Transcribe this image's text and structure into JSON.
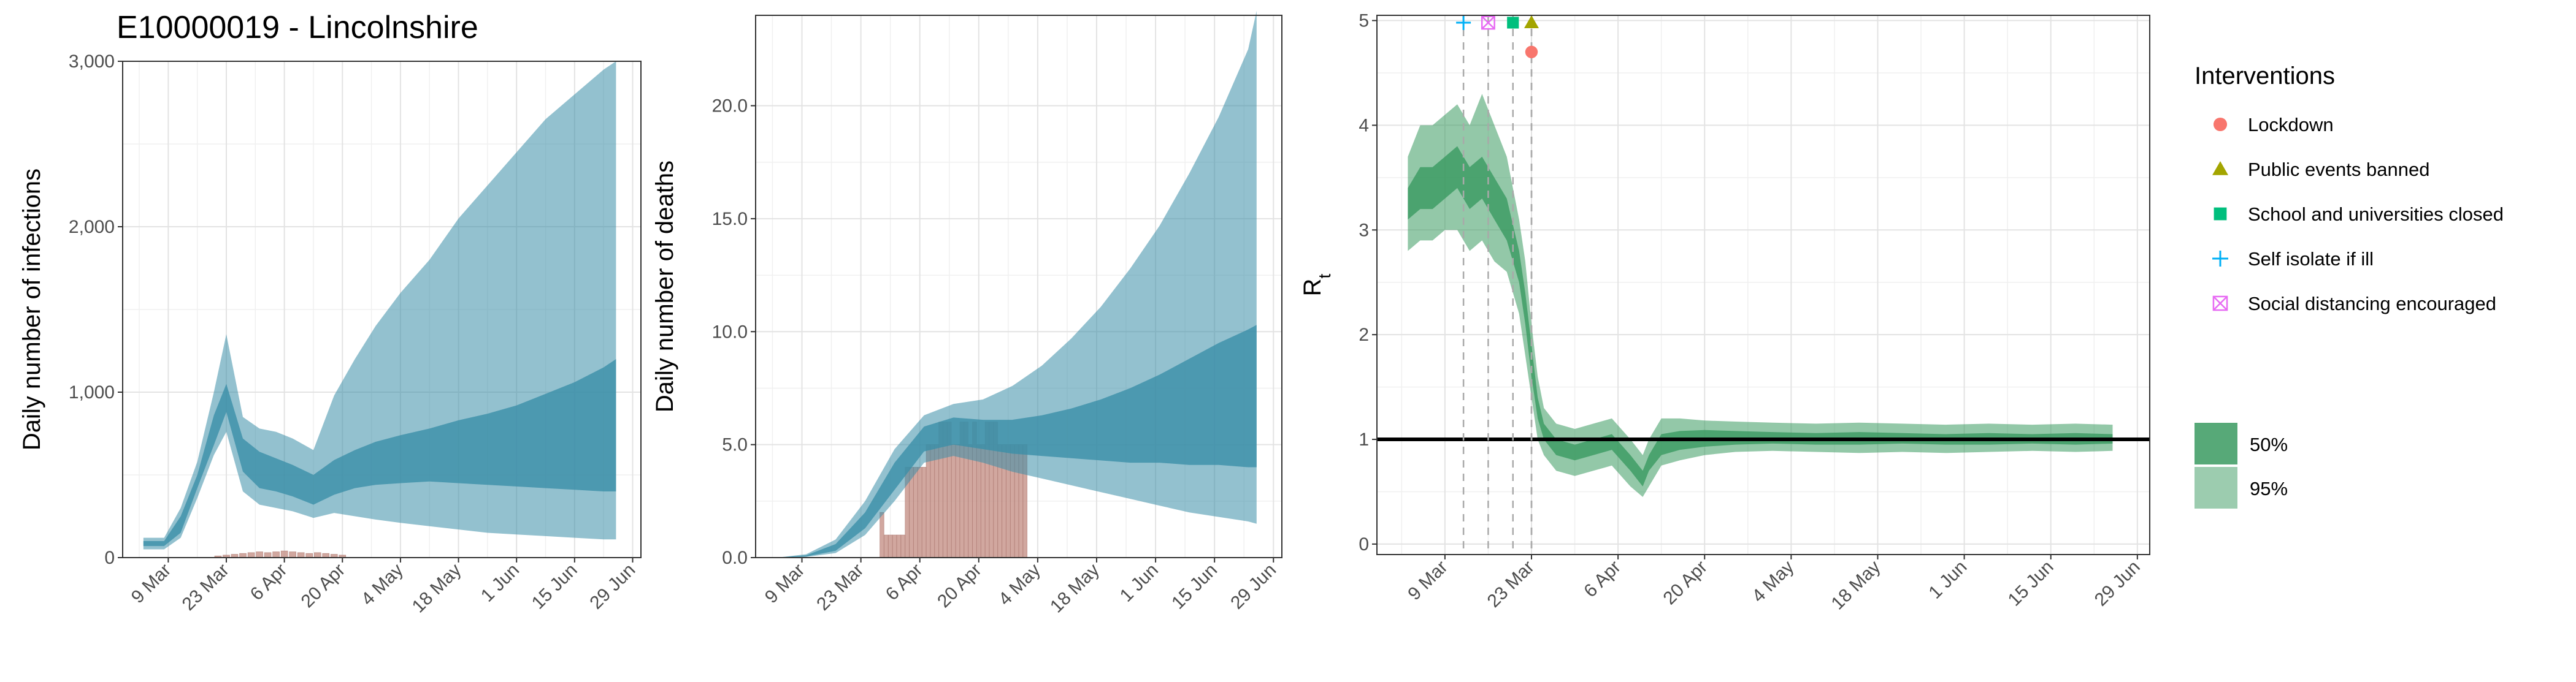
{
  "figure_title": "E10000019 - Lincolnshire",
  "colors": {
    "infection_band": "#3b8ea8",
    "rt_band": "#3a9a60",
    "reported_bars": "#c9988f",
    "reference_line": "#000000",
    "lockdown": "#f8766d",
    "public_events": "#a3a500",
    "schools": "#00bf7d",
    "self_isolate": "#00b0f6",
    "social_distancing": "#e76bf3"
  },
  "legend": {
    "interventions_title": "Interventions",
    "interventions": [
      {
        "label": "Lockdown",
        "icon": "circle-icon",
        "color": "#f8766d"
      },
      {
        "label": "Public events banned",
        "icon": "triangle-icon",
        "color": "#a3a500"
      },
      {
        "label": "School and universities closed",
        "icon": "square-icon",
        "color": "#00bf7d"
      },
      {
        "label": "Self isolate if ill",
        "icon": "plus-icon",
        "color": "#00b0f6"
      },
      {
        "label": "Social distancing encouraged",
        "icon": "boxed-cross-icon",
        "color": "#e76bf3"
      }
    ],
    "ci_entries": [
      {
        "label": "50%",
        "opacity": 0.85
      },
      {
        "label": "95%",
        "opacity": 0.5
      }
    ]
  },
  "chart_data": [
    {
      "type": "area",
      "title": "E10000019 - Lincolnshire",
      "xlabel": "",
      "ylabel": "Daily number of infections",
      "x_ticks": [
        "9 Mar",
        "23 Mar",
        "6 Apr",
        "20 Apr",
        "4 May",
        "18 May",
        "1 Jun",
        "15 Jun",
        "29 Jun"
      ],
      "x_range": [
        "2020-02-27",
        "2020-07-01"
      ],
      "y_ticks": [
        "0",
        "1,000",
        "2,000",
        "3,000"
      ],
      "y_tick_values": [
        0,
        1000,
        2000,
        3000
      ],
      "ylim": [
        0,
        3000
      ],
      "grid": true,
      "series": [
        {
          "x": [
            "2020-03-03",
            "2020-03-08",
            "2020-03-12",
            "2020-03-16",
            "2020-03-20",
            "2020-03-23",
            "2020-03-27",
            "2020-03-31",
            "2020-04-04",
            "2020-04-08",
            "2020-04-13",
            "2020-04-18",
            "2020-04-23",
            "2020-04-28",
            "2020-05-04",
            "2020-05-11",
            "2020-05-18",
            "2020-05-25",
            "2020-06-01",
            "2020-06-08",
            "2020-06-15",
            "2020-06-22",
            "2020-06-25"
          ],
          "ci50_low": [
            70,
            70,
            150,
            420,
            680,
            880,
            520,
            420,
            400,
            370,
            320,
            380,
            420,
            440,
            450,
            460,
            450,
            440,
            430,
            420,
            410,
            400,
            400
          ],
          "ci50_high": [
            100,
            100,
            250,
            500,
            860,
            1050,
            720,
            640,
            600,
            560,
            500,
            590,
            650,
            700,
            740,
            780,
            830,
            870,
            920,
            990,
            1060,
            1150,
            1200
          ],
          "ci95_low": [
            50,
            50,
            120,
            360,
            620,
            760,
            400,
            320,
            300,
            280,
            240,
            270,
            250,
            230,
            210,
            190,
            170,
            150,
            140,
            130,
            120,
            110,
            110
          ],
          "ci95_high": [
            120,
            120,
            300,
            580,
            1000,
            1350,
            850,
            780,
            760,
            720,
            650,
            980,
            1200,
            1400,
            1600,
            1800,
            2050,
            2250,
            2450,
            2650,
            2800,
            2950,
            3000
          ]
        }
      ],
      "reported_bars": {
        "x": [
          "2020-03-21",
          "2020-03-23",
          "2020-03-25",
          "2020-03-27",
          "2020-03-29",
          "2020-03-31",
          "2020-04-02",
          "2020-04-04",
          "2020-04-06",
          "2020-04-08",
          "2020-04-10",
          "2020-04-12",
          "2020-04-14",
          "2020-04-16",
          "2020-04-18",
          "2020-04-20"
        ],
        "values": [
          10,
          15,
          20,
          25,
          30,
          35,
          30,
          35,
          40,
          35,
          30,
          25,
          30,
          25,
          20,
          15
        ]
      }
    },
    {
      "type": "area",
      "xlabel": "",
      "ylabel": "Daily number of deaths",
      "x_ticks": [
        "9 Mar",
        "23 Mar",
        "6 Apr",
        "20 Apr",
        "4 May",
        "18 May",
        "1 Jun",
        "15 Jun",
        "29 Jun"
      ],
      "x_range": [
        "2020-02-27",
        "2020-07-01"
      ],
      "y_ticks": [
        "0.0",
        "5.0",
        "10.0",
        "15.0",
        "20.0"
      ],
      "y_tick_values": [
        0,
        5,
        10,
        15,
        20
      ],
      "ylim": [
        0,
        24
      ],
      "grid": true,
      "series": [
        {
          "x": [
            "2020-03-03",
            "2020-03-10",
            "2020-03-17",
            "2020-03-24",
            "2020-03-31",
            "2020-04-07",
            "2020-04-14",
            "2020-04-21",
            "2020-04-28",
            "2020-05-05",
            "2020-05-12",
            "2020-05-19",
            "2020-05-26",
            "2020-06-02",
            "2020-06-09",
            "2020-06-16",
            "2020-06-23",
            "2020-06-25"
          ],
          "ci50_low": [
            0,
            0.05,
            0.3,
            1.3,
            3.0,
            4.7,
            5.0,
            4.8,
            4.6,
            4.5,
            4.4,
            4.3,
            4.2,
            4.2,
            4.1,
            4.1,
            4.0,
            4.0
          ],
          "ci50_high": [
            0,
            0.1,
            0.6,
            2.0,
            4.2,
            5.8,
            6.2,
            6.1,
            6.1,
            6.3,
            6.6,
            7.0,
            7.5,
            8.1,
            8.8,
            9.5,
            10.1,
            10.3
          ],
          "ci95_low": [
            0,
            0.03,
            0.2,
            1.0,
            2.5,
            4.2,
            4.5,
            4.2,
            3.8,
            3.5,
            3.2,
            2.9,
            2.6,
            2.3,
            2.0,
            1.8,
            1.6,
            1.5
          ],
          "ci95_high": [
            0,
            0.15,
            0.8,
            2.5,
            4.8,
            6.3,
            6.8,
            7.0,
            7.6,
            8.5,
            9.7,
            11.1,
            12.8,
            14.7,
            17.0,
            19.5,
            22.5,
            24.2
          ]
        }
      ],
      "reported_bars": {
        "x": [
          "2020-03-28",
          "2020-03-29",
          "2020-03-30",
          "2020-03-31",
          "2020-04-01",
          "2020-04-02",
          "2020-04-03",
          "2020-04-04",
          "2020-04-05",
          "2020-04-06",
          "2020-04-07",
          "2020-04-08",
          "2020-04-09",
          "2020-04-10",
          "2020-04-11",
          "2020-04-12",
          "2020-04-13",
          "2020-04-14",
          "2020-04-15",
          "2020-04-16",
          "2020-04-17",
          "2020-04-18",
          "2020-04-19",
          "2020-04-20",
          "2020-04-21",
          "2020-04-22",
          "2020-04-23",
          "2020-04-24",
          "2020-04-25",
          "2020-04-26",
          "2020-04-27",
          "2020-04-28",
          "2020-04-29",
          "2020-04-30",
          "2020-05-01"
        ],
        "values": [
          2,
          1,
          1,
          1,
          1,
          1,
          4,
          4,
          4,
          4,
          4,
          5,
          5,
          5,
          6,
          6,
          6,
          5,
          5,
          6,
          6,
          5,
          6,
          5,
          5,
          6,
          6,
          6,
          5,
          5,
          5,
          5,
          5,
          5,
          5
        ]
      }
    },
    {
      "type": "area",
      "xlabel": "",
      "ylabel": "R",
      "ylabel_subscript": "t",
      "x_ticks": [
        "9 Mar",
        "23 Mar",
        "6 Apr",
        "20 Apr",
        "4 May",
        "18 May",
        "1 Jun",
        "15 Jun",
        "29 Jun"
      ],
      "x_range": [
        "2020-02-27",
        "2020-07-01"
      ],
      "y_ticks": [
        "0",
        "1",
        "2",
        "3",
        "4",
        "5"
      ],
      "y_tick_values": [
        0,
        1,
        2,
        3,
        4,
        5
      ],
      "ylim": [
        -0.1,
        5.05
      ],
      "grid": true,
      "reference_line": 1,
      "series": [
        {
          "x": [
            "2020-03-03",
            "2020-03-05",
            "2020-03-07",
            "2020-03-09",
            "2020-03-11",
            "2020-03-13",
            "2020-03-15",
            "2020-03-17",
            "2020-03-19",
            "2020-03-21",
            "2020-03-22",
            "2020-03-23",
            "2020-03-24",
            "2020-03-25",
            "2020-03-27",
            "2020-03-30",
            "2020-04-02",
            "2020-04-05",
            "2020-04-08",
            "2020-04-10",
            "2020-04-11",
            "2020-04-13",
            "2020-04-16",
            "2020-04-20",
            "2020-04-25",
            "2020-05-01",
            "2020-05-08",
            "2020-05-15",
            "2020-05-22",
            "2020-05-29",
            "2020-06-05",
            "2020-06-12",
            "2020-06-19",
            "2020-06-25"
          ],
          "ci50_low": [
            3.1,
            3.2,
            3.2,
            3.3,
            3.4,
            3.2,
            3.3,
            3.1,
            2.9,
            2.5,
            2.1,
            1.6,
            1.2,
            1.0,
            0.85,
            0.8,
            0.85,
            0.9,
            0.7,
            0.55,
            0.7,
            0.85,
            0.9,
            0.93,
            0.95,
            0.96,
            0.95,
            0.95,
            0.96,
            0.95,
            0.95,
            0.96,
            0.95,
            0.96
          ],
          "ci50_high": [
            3.4,
            3.6,
            3.6,
            3.7,
            3.8,
            3.6,
            3.7,
            3.5,
            3.3,
            2.8,
            2.4,
            1.9,
            1.4,
            1.15,
            1.0,
            0.95,
            1.0,
            1.05,
            0.85,
            0.7,
            0.85,
            1.05,
            1.08,
            1.09,
            1.08,
            1.07,
            1.06,
            1.07,
            1.06,
            1.05,
            1.06,
            1.05,
            1.06,
            1.05
          ],
          "ci95_low": [
            2.8,
            2.9,
            2.9,
            3.0,
            3.0,
            2.8,
            2.9,
            2.7,
            2.6,
            2.2,
            1.8,
            1.4,
            1.0,
            0.85,
            0.7,
            0.65,
            0.7,
            0.75,
            0.55,
            0.45,
            0.55,
            0.75,
            0.8,
            0.85,
            0.88,
            0.89,
            0.88,
            0.87,
            0.88,
            0.87,
            0.88,
            0.89,
            0.88,
            0.89
          ],
          "ci95_high": [
            3.7,
            4.0,
            4.0,
            4.1,
            4.2,
            4.0,
            4.3,
            4.0,
            3.7,
            3.1,
            2.7,
            2.1,
            1.6,
            1.3,
            1.15,
            1.1,
            1.15,
            1.2,
            1.0,
            0.85,
            1.0,
            1.2,
            1.2,
            1.18,
            1.17,
            1.16,
            1.15,
            1.16,
            1.15,
            1.14,
            1.15,
            1.14,
            1.15,
            1.14
          ]
        }
      ],
      "interventions": [
        {
          "name": "Self isolate if ill",
          "date": "2020-03-12",
          "value": 4.98
        },
        {
          "name": "Social distancing encouraged",
          "date": "2020-03-16",
          "value": 4.98
        },
        {
          "name": "School and universities closed",
          "date": "2020-03-20",
          "value": 4.98
        },
        {
          "name": "Public events banned",
          "date": "2020-03-23",
          "value": 4.98
        },
        {
          "name": "Lockdown",
          "date": "2020-03-23",
          "value": 4.7
        }
      ]
    }
  ]
}
